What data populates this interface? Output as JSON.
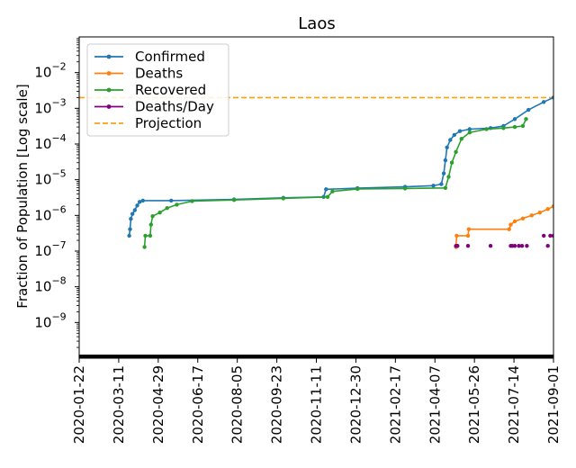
{
  "chart_data": {
    "type": "line",
    "title": "Laos",
    "xlabel": "",
    "ylabel": "Fraction of Population [Log scale]",
    "yscale": "log",
    "ylim": [
      1e-10,
      0.1
    ],
    "xlim": [
      "2020-01-22",
      "2021-09-01"
    ],
    "x_ticks": [
      "2020-01-22",
      "2020-03-11",
      "2020-04-29",
      "2020-06-17",
      "2020-08-05",
      "2020-09-23",
      "2020-11-11",
      "2020-12-30",
      "2021-02-17",
      "2021-04-07",
      "2021-05-26",
      "2021-07-14",
      "2021-09-01"
    ],
    "y_ticks": [
      {
        "exp": -9,
        "label": "10",
        "sup": "−9"
      },
      {
        "exp": -8,
        "label": "10",
        "sup": "−8"
      },
      {
        "exp": -7,
        "label": "10",
        "sup": "−7"
      },
      {
        "exp": -6,
        "label": "10",
        "sup": "−6"
      },
      {
        "exp": -5,
        "label": "10",
        "sup": "−5"
      },
      {
        "exp": -4,
        "label": "10",
        "sup": "−4"
      },
      {
        "exp": -3,
        "label": "10",
        "sup": "−3"
      },
      {
        "exp": -2,
        "label": "10",
        "sup": "−2"
      }
    ],
    "legend_position": "top-left",
    "projection": {
      "name": "Projection",
      "value": 0.002,
      "color": "#ff9f0f"
    },
    "series": [
      {
        "name": "Confirmed",
        "color": "#1f77b4",
        "points": [
          [
            "2020-03-24",
            2.7e-07
          ],
          [
            "2020-03-25",
            4.1e-07
          ],
          [
            "2020-03-26",
            8e-07
          ],
          [
            "2020-03-28",
            1.1e-06
          ],
          [
            "2020-03-31",
            1.4e-06
          ],
          [
            "2020-04-03",
            1.9e-06
          ],
          [
            "2020-04-06",
            2.4e-06
          ],
          [
            "2020-04-10",
            2.6e-06
          ],
          [
            "2020-05-15",
            2.6e-06
          ],
          [
            "2020-08-01",
            2.8e-06
          ],
          [
            "2020-10-01",
            3.1e-06
          ],
          [
            "2020-11-20",
            3.3e-06
          ],
          [
            "2020-11-23",
            5.4e-06
          ],
          [
            "2021-01-01",
            5.8e-06
          ],
          [
            "2021-03-01",
            6.3e-06
          ],
          [
            "2021-04-05",
            6.8e-06
          ],
          [
            "2021-04-15",
            7.5e-06
          ],
          [
            "2021-04-18",
            1.5e-05
          ],
          [
            "2021-04-20",
            3.5e-05
          ],
          [
            "2021-04-22",
            8e-05
          ],
          [
            "2021-04-26",
            0.00013
          ],
          [
            "2021-05-01",
            0.00018
          ],
          [
            "2021-05-08",
            0.00023
          ],
          [
            "2021-05-20",
            0.00026
          ],
          [
            "2021-06-15",
            0.00028
          ],
          [
            "2021-07-01",
            0.00032
          ],
          [
            "2021-07-15",
            0.0005
          ],
          [
            "2021-08-01",
            0.0009
          ],
          [
            "2021-08-20",
            0.0015
          ],
          [
            "2021-09-01",
            0.002
          ]
        ]
      },
      {
        "name": "Deaths",
        "color": "#ff7f0e",
        "points": [
          [
            "2021-05-03",
            1.3e-07
          ],
          [
            "2021-05-04",
            2.7e-07
          ],
          [
            "2021-05-18",
            2.7e-07
          ],
          [
            "2021-05-19",
            4.1e-07
          ],
          [
            "2021-07-08",
            4.1e-07
          ],
          [
            "2021-07-10",
            5.5e-07
          ],
          [
            "2021-07-15",
            6.8e-07
          ],
          [
            "2021-07-25",
            8.2e-07
          ],
          [
            "2021-08-05",
            1e-06
          ],
          [
            "2021-08-15",
            1.2e-06
          ],
          [
            "2021-08-25",
            1.5e-06
          ],
          [
            "2021-09-01",
            1.8e-06
          ]
        ]
      },
      {
        "name": "Recovered",
        "color": "#2ca02c",
        "points": [
          [
            "2020-04-12",
            1.3e-07
          ],
          [
            "2020-04-13",
            2.7e-07
          ],
          [
            "2020-04-19",
            2.7e-07
          ],
          [
            "2020-04-20",
            5.5e-07
          ],
          [
            "2020-04-22",
            9.5e-07
          ],
          [
            "2020-05-01",
            1.2e-06
          ],
          [
            "2020-05-10",
            1.6e-06
          ],
          [
            "2020-05-22",
            2e-06
          ],
          [
            "2020-06-10",
            2.5e-06
          ],
          [
            "2020-08-01",
            2.7e-06
          ],
          [
            "2020-10-01",
            3e-06
          ],
          [
            "2020-11-25",
            3.3e-06
          ],
          [
            "2020-12-01",
            4.7e-06
          ],
          [
            "2021-01-01",
            5.5e-06
          ],
          [
            "2021-03-01",
            5.7e-06
          ],
          [
            "2021-04-20",
            5.9e-06
          ],
          [
            "2021-04-24",
            1.2e-05
          ],
          [
            "2021-04-28",
            3e-05
          ],
          [
            "2021-05-03",
            6e-05
          ],
          [
            "2021-05-10",
            0.00014
          ],
          [
            "2021-05-20",
            0.00021
          ],
          [
            "2021-06-10",
            0.00026
          ],
          [
            "2021-07-01",
            0.00028
          ],
          [
            "2021-07-15",
            0.0003
          ],
          [
            "2021-07-25",
            0.00032
          ],
          [
            "2021-07-29",
            0.0005
          ]
        ]
      },
      {
        "name": "Deaths/Day",
        "color": "#800080",
        "markers_only": true,
        "points": [
          [
            "2021-05-03",
            1.4e-07
          ],
          [
            "2021-05-04",
            1.4e-07
          ],
          [
            "2021-05-05",
            1.4e-07
          ],
          [
            "2021-05-18",
            1.4e-07
          ],
          [
            "2021-06-15",
            1.4e-07
          ],
          [
            "2021-07-10",
            1.4e-07
          ],
          [
            "2021-07-12",
            1.4e-07
          ],
          [
            "2021-07-15",
            1.4e-07
          ],
          [
            "2021-07-20",
            1.4e-07
          ],
          [
            "2021-07-24",
            1.4e-07
          ],
          [
            "2021-07-30",
            1.4e-07
          ],
          [
            "2021-08-20",
            2.7e-07
          ],
          [
            "2021-08-25",
            1.4e-07
          ],
          [
            "2021-08-28",
            2.7e-07
          ],
          [
            "2021-09-01",
            2.7e-07
          ]
        ]
      }
    ]
  }
}
